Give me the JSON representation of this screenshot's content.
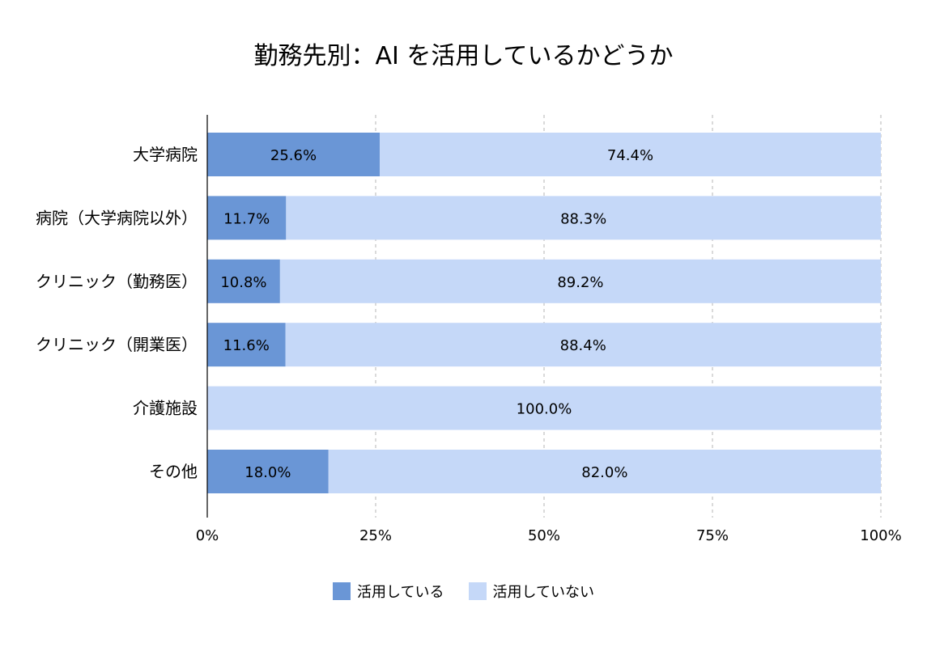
{
  "chart_data": {
    "type": "bar",
    "orientation": "horizontal",
    "stacked": "percent",
    "title": "勤務先別：AI を活用しているかどうか",
    "categories": [
      "大学病院",
      "病院（大学病院以外）",
      "クリニック（勤務医）",
      "クリニック（開業医）",
      "介護施設",
      "その他"
    ],
    "series": [
      {
        "name": "活用している",
        "color": "#6a96d6",
        "values": [
          25.6,
          11.7,
          10.8,
          11.6,
          0.0,
          18.0
        ],
        "labels": [
          "25.6%",
          "11.7%",
          "10.8%",
          "11.6%",
          "",
          "18.0%"
        ]
      },
      {
        "name": "活用していない",
        "color": "#c5d8f8",
        "values": [
          74.4,
          88.3,
          89.2,
          88.4,
          100.0,
          82.0
        ],
        "labels": [
          "74.4%",
          "88.3%",
          "89.2%",
          "88.4%",
          "100.0%",
          "82.0%"
        ]
      }
    ],
    "xlim": [
      0,
      100
    ],
    "xticks": [
      "0%",
      "25%",
      "50%",
      "75%",
      "100%"
    ],
    "xtick_values": [
      0,
      25,
      50,
      75,
      100
    ],
    "grid": "vertical-dashed",
    "legend": "bottom-center"
  }
}
